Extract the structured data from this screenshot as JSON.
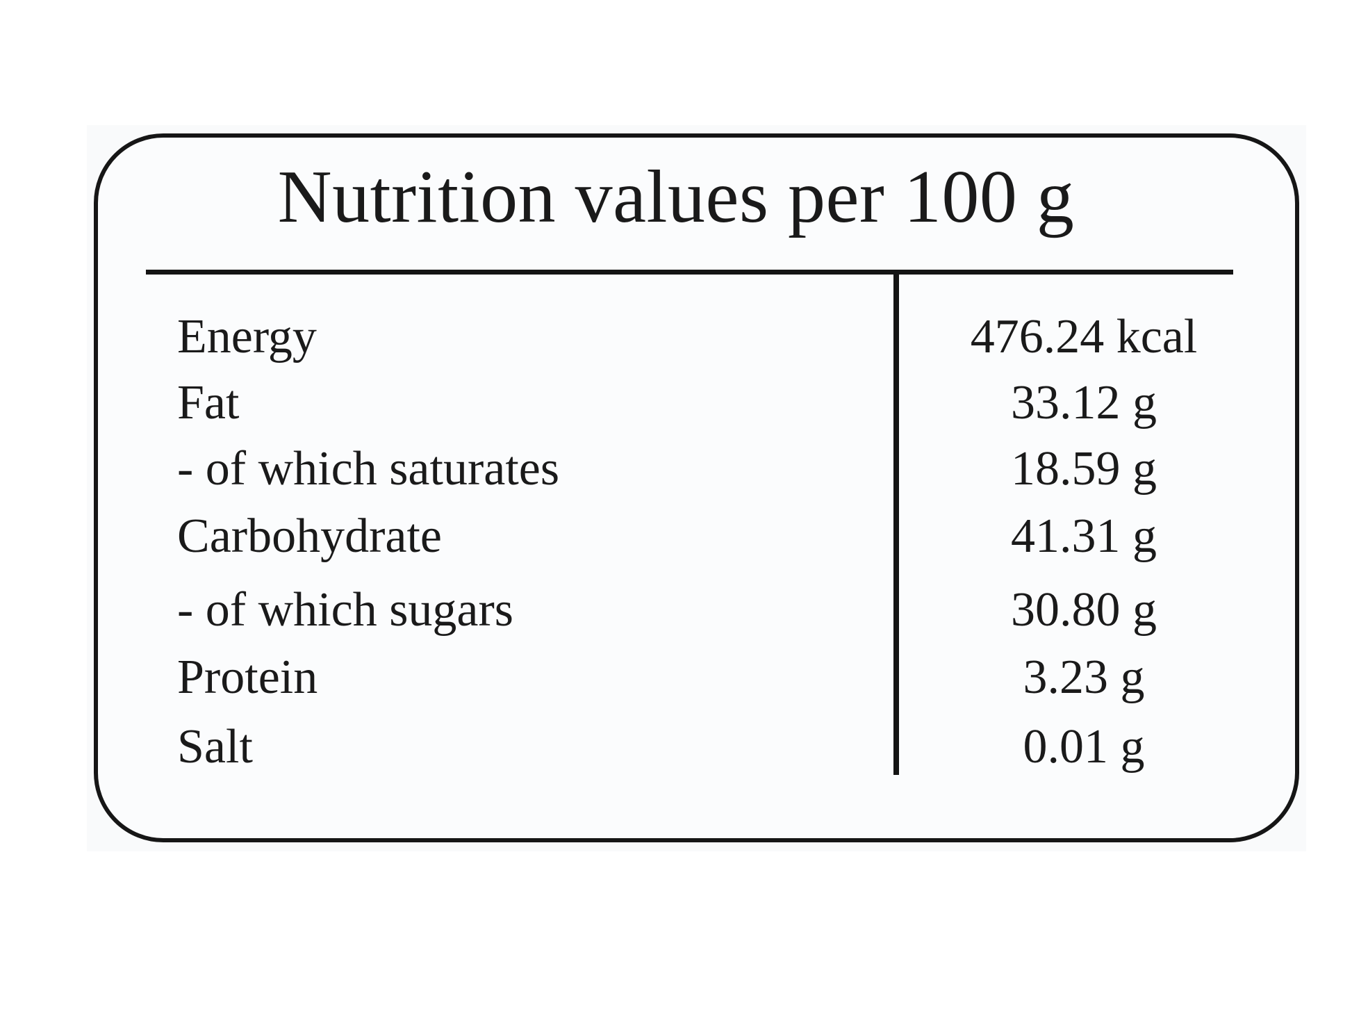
{
  "label": {
    "title": "Nutrition values per 100 g",
    "rows": [
      {
        "name": "Energy",
        "value": "476.24 kcal"
      },
      {
        "name": "Fat",
        "value": "33.12 g"
      },
      {
        "name": "- of which saturates",
        "value": "18.59 g"
      },
      {
        "name": "Carbohydrate",
        "value": "41.31 g"
      },
      {
        "name": "- of which sugars",
        "value": "30.80 g"
      },
      {
        "name": "Protein",
        "value": "3.23 g"
      },
      {
        "name": "Salt",
        "value": "0.01 g"
      }
    ]
  }
}
